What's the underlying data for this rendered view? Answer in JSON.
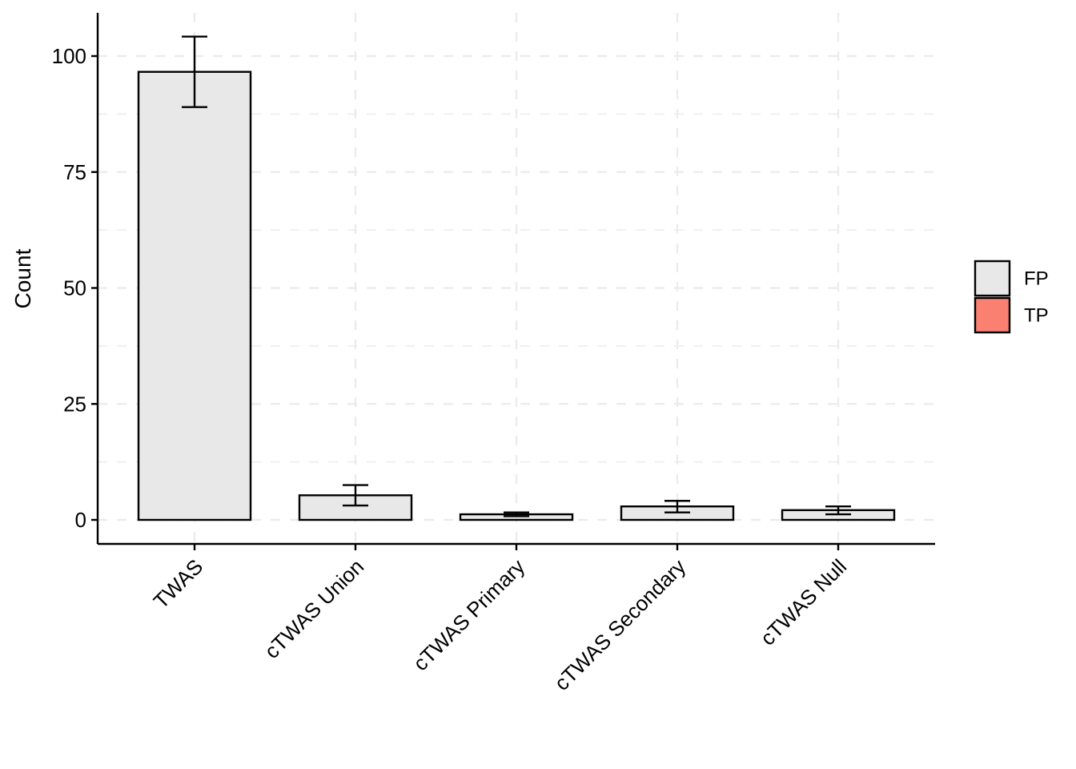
{
  "chart_data": {
    "type": "bar",
    "ylabel": "Count",
    "ylim": [
      -5,
      109
    ],
    "yticks": [
      0,
      25,
      50,
      75,
      100
    ],
    "grid": "dashed",
    "legend_placement": "right",
    "categories": [
      "TWAS",
      "cTWAS Union",
      "cTWAS Primary",
      "cTWAS Secondary",
      "cTWAS Null"
    ],
    "series": [
      {
        "name": "FP",
        "color": "#E8E8E8",
        "values": [
          96.6,
          5.3,
          1.2,
          2.9,
          2.1
        ],
        "error_low": [
          89.0,
          3.1,
          0.8,
          1.6,
          1.2
        ],
        "error_high": [
          104.2,
          7.5,
          1.6,
          4.1,
          2.9
        ]
      },
      {
        "name": "TP",
        "color": "#FA8072",
        "values": [
          0,
          0,
          0,
          0,
          0
        ]
      }
    ]
  }
}
